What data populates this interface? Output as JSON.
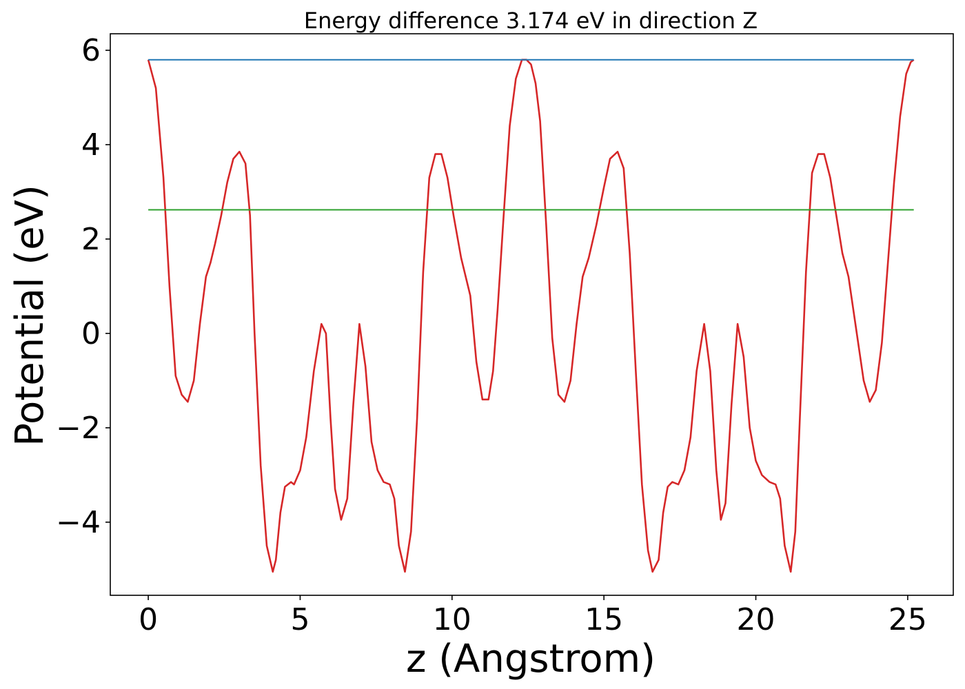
{
  "chart_data": {
    "type": "line",
    "title": "Energy difference 3.174 eV in direction Z",
    "xlabel": "z (Angstrom)",
    "ylabel": "Potential (eV)",
    "xlim": [
      -1.25,
      26.5
    ],
    "ylim": [
      -5.55,
      6.35
    ],
    "xticks": [
      0,
      5,
      10,
      15,
      20,
      25
    ],
    "xtick_labels": [
      "0",
      "5",
      "10",
      "15",
      "20",
      "25"
    ],
    "yticks": [
      -4,
      -2,
      0,
      2,
      4,
      6
    ],
    "ytick_labels": [
      "−4",
      "−2",
      "0",
      "2",
      "4",
      "6"
    ],
    "grid": false,
    "series": [
      {
        "color": "#d62728",
        "x": [
          0,
          0.25,
          0.5,
          0.7,
          0.9,
          1.1,
          1.3,
          1.5,
          1.7,
          1.9,
          2.05,
          2.2,
          2.4,
          2.6,
          2.8,
          3.0,
          3.2,
          3.35,
          3.5,
          3.7,
          3.9,
          4.1,
          4.2,
          4.35,
          4.5,
          4.7,
          4.8,
          5.0,
          5.2,
          5.45,
          5.7,
          5.85,
          6.0,
          6.15,
          6.35,
          6.55,
          6.75,
          6.95,
          7.15,
          7.35,
          7.55,
          7.75,
          7.95,
          8.1,
          8.25,
          8.45,
          8.65,
          8.85,
          9.05,
          9.25,
          9.45,
          9.65,
          9.85,
          10.05,
          10.3,
          10.6,
          10.8,
          11.0,
          11.2,
          11.35,
          11.5,
          11.7,
          11.9,
          12.1,
          12.3,
          12.45,
          12.6,
          12.75,
          12.9,
          13.1,
          13.3,
          13.5,
          13.7,
          13.9,
          14.1,
          14.3,
          14.5,
          14.75,
          15.0,
          15.2,
          15.45,
          15.65,
          15.85,
          16.05,
          16.25,
          16.45,
          16.6,
          16.8,
          16.95,
          17.1,
          17.25,
          17.45,
          17.65,
          17.85,
          18.05,
          18.3,
          18.5,
          18.7,
          18.85,
          19.0,
          19.2,
          19.4,
          19.6,
          19.8,
          20.0,
          20.2,
          20.45,
          20.65,
          20.8,
          20.95,
          21.15,
          21.3,
          21.45,
          21.65,
          21.85,
          22.05,
          22.25,
          22.45,
          22.65,
          22.85,
          23.05,
          23.3,
          23.55,
          23.75,
          23.95,
          24.15,
          24.35,
          24.55,
          24.75,
          24.95,
          25.1,
          25.2
        ],
        "y": [
          5.8,
          5.2,
          3.3,
          1.0,
          -0.9,
          -1.3,
          -1.45,
          -1.0,
          0.2,
          1.2,
          1.5,
          1.9,
          2.5,
          3.2,
          3.7,
          3.85,
          3.6,
          2.5,
          0.0,
          -2.8,
          -4.5,
          -5.05,
          -4.8,
          -3.8,
          -3.25,
          -3.15,
          -3.2,
          -2.9,
          -2.2,
          -0.8,
          0.2,
          0.0,
          -1.8,
          -3.3,
          -3.95,
          -3.5,
          -1.5,
          0.2,
          -0.7,
          -2.3,
          -2.9,
          -3.15,
          -3.2,
          -3.5,
          -4.5,
          -5.05,
          -4.2,
          -1.8,
          1.3,
          3.3,
          3.8,
          3.8,
          3.3,
          2.5,
          1.6,
          0.8,
          -0.6,
          -1.4,
          -1.4,
          -0.8,
          0.5,
          2.5,
          4.4,
          5.4,
          5.8,
          5.8,
          5.7,
          5.3,
          4.5,
          2.3,
          -0.1,
          -1.3,
          -1.45,
          -1.0,
          0.2,
          1.2,
          1.6,
          2.3,
          3.1,
          3.7,
          3.85,
          3.5,
          1.7,
          -0.8,
          -3.2,
          -4.6,
          -5.05,
          -4.8,
          -3.8,
          -3.25,
          -3.15,
          -3.2,
          -2.9,
          -2.2,
          -0.8,
          0.2,
          -0.8,
          -2.9,
          -3.95,
          -3.6,
          -1.5,
          0.2,
          -0.5,
          -2.0,
          -2.7,
          -3.0,
          -3.15,
          -3.2,
          -3.5,
          -4.5,
          -5.05,
          -4.2,
          -1.8,
          1.3,
          3.4,
          3.8,
          3.8,
          3.3,
          2.5,
          1.7,
          1.2,
          0.1,
          -1.0,
          -1.45,
          -1.2,
          -0.2,
          1.5,
          3.2,
          4.6,
          5.5,
          5.75,
          5.8
        ]
      },
      {
        "color": "#1f77b4",
        "x": [
          0,
          25.2
        ],
        "y": [
          5.8,
          5.8
        ]
      },
      {
        "color": "#2ca02c",
        "x": [
          0,
          25.2
        ],
        "y": [
          2.62,
          2.62
        ]
      }
    ]
  }
}
